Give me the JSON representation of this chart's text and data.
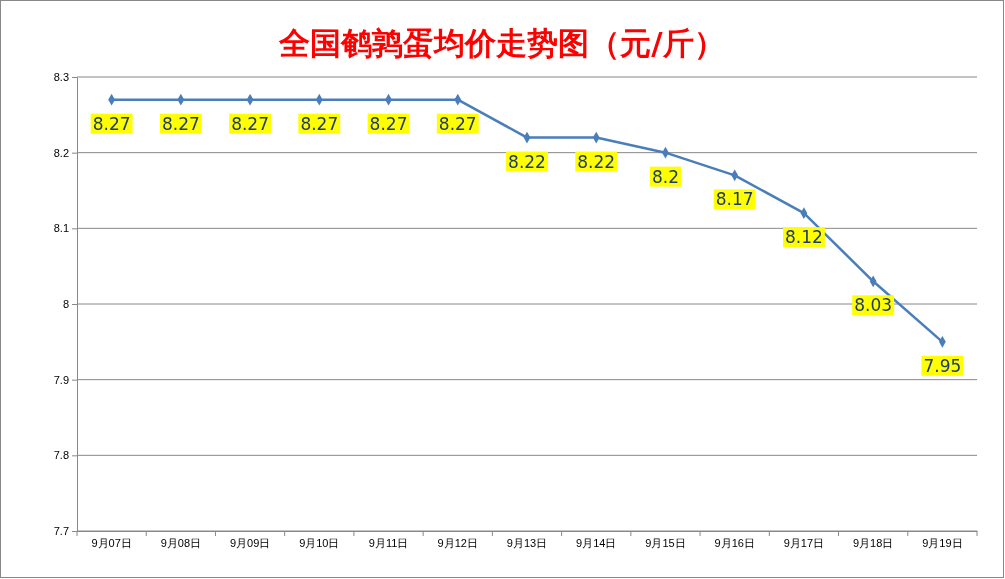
{
  "chart_data": {
    "type": "line",
    "title": "全国鹌鹑蛋均价走势图（元/斤）",
    "categories": [
      "9月07日",
      "9月08日",
      "9月09日",
      "9月10日",
      "9月11日",
      "9月12日",
      "9月13日",
      "9月14日",
      "9月15日",
      "9月16日",
      "9月17日",
      "9月18日",
      "9月19日"
    ],
    "series": [
      {
        "color": "#4a7ebb",
        "values": [
          8.27,
          8.27,
          8.27,
          8.27,
          8.27,
          8.27,
          8.22,
          8.22,
          8.2,
          8.17,
          8.12,
          8.03,
          7.95
        ]
      }
    ],
    "ylim": [
      7.7,
      8.3
    ],
    "yticks": [
      7.7,
      7.8,
      7.9,
      8,
      8.1,
      8.2,
      8.3
    ],
    "grid": "y",
    "marker": "diamond",
    "line_style": "solid",
    "data_labels": true
  }
}
